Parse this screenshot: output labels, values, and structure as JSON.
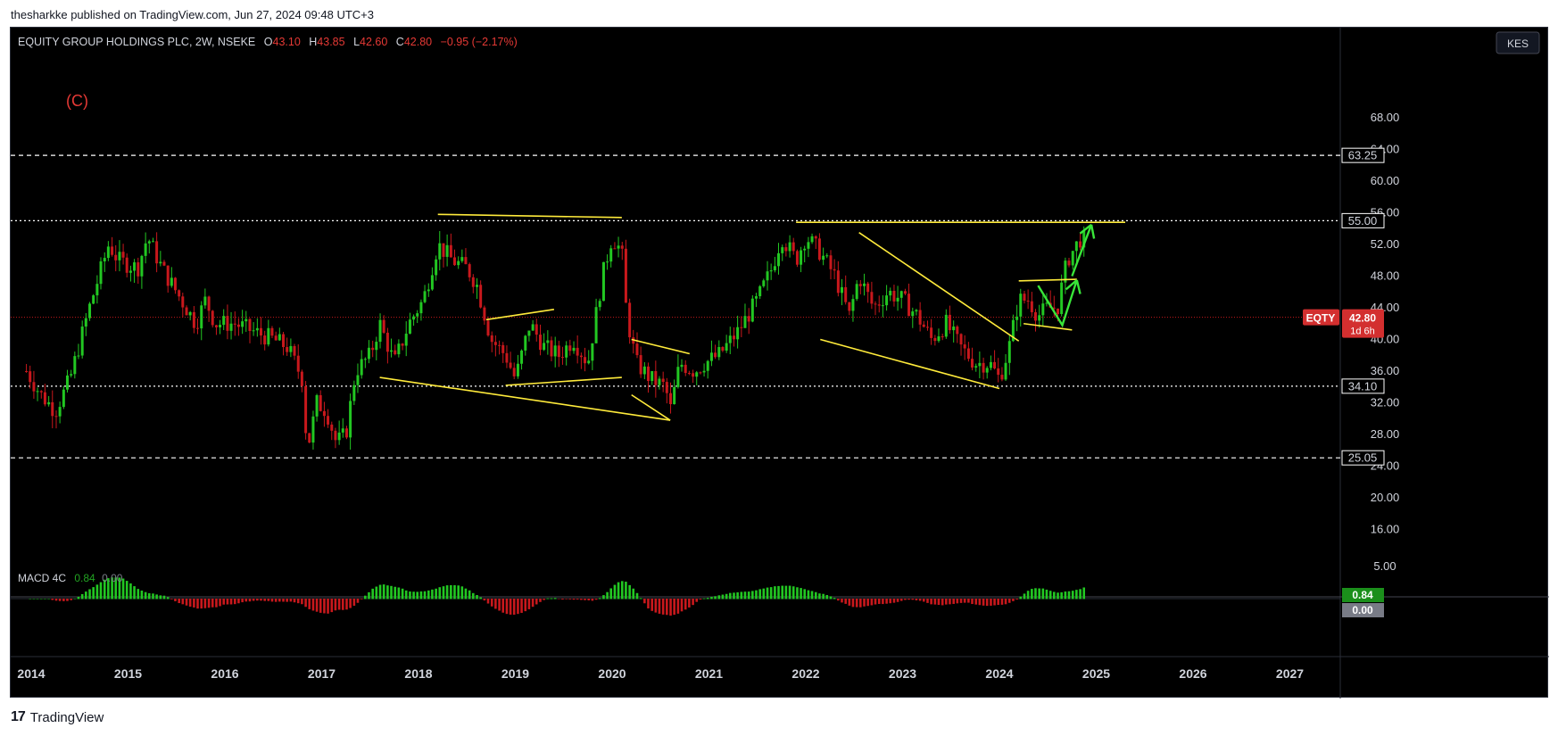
{
  "header": {
    "published_by": "thesharkke published on TradingView.com, Jun 27, 2024 09:48 UTC+3"
  },
  "footer": {
    "brand": "TradingView"
  },
  "colors": {
    "up": "#22c722",
    "down": "#c8181c",
    "line": "#ffeb3b",
    "arrow": "#39e639",
    "label_red": "#e53935",
    "last_price_bg": "#d32f2f"
  },
  "chart_data": {
    "type": "candlestick",
    "symbol_line": {
      "name": "EQUITY GROUP HOLDINGS PLC, 2W, NSEKE",
      "o_label": "O",
      "o": "43.10",
      "h_label": "H",
      "h": "43.85",
      "l_label": "L",
      "l": "42.60",
      "c_label": "C",
      "c": "42.80",
      "change": "−0.95 (−2.17%)"
    },
    "currency": "KES",
    "wave_label": "(C)",
    "ylim": [
      12,
      76
    ],
    "y_ticks": [
      "68.00",
      "64.00",
      "60.00",
      "56.00",
      "52.00",
      "48.00",
      "44.00",
      "40.00",
      "36.00",
      "32.00",
      "28.00",
      "24.00",
      "20.00",
      "16.00"
    ],
    "x_ticks": [
      "2014",
      "2015",
      "2016",
      "2017",
      "2018",
      "2019",
      "2020",
      "2021",
      "2022",
      "2023",
      "2024",
      "2025",
      "2026",
      "2027"
    ],
    "levels": [
      {
        "value": 63.25,
        "label": "63.25",
        "style": "dashed"
      },
      {
        "value": 55.0,
        "label": "55.00",
        "style": "dotted"
      },
      {
        "value": 34.1,
        "label": "34.10",
        "style": "dotted"
      },
      {
        "value": 25.05,
        "label": "25.05",
        "style": "dashed"
      }
    ],
    "last_price": {
      "value": 42.8,
      "symbol": "EQTY",
      "price": "42.80",
      "countdown": "1d 6h"
    },
    "trendlines": [
      {
        "x1": 2018.2,
        "y1": 55.8,
        "x2": 2020.1,
        "y2": 55.4
      },
      {
        "x1": 2017.6,
        "y1": 35.2,
        "x2": 2020.6,
        "y2": 29.8
      },
      {
        "x1": 2018.7,
        "y1": 42.5,
        "x2": 2019.4,
        "y2": 43.8
      },
      {
        "x1": 2018.9,
        "y1": 34.2,
        "x2": 2020.1,
        "y2": 35.2
      },
      {
        "x1": 2020.2,
        "y1": 40.0,
        "x2": 2020.8,
        "y2": 38.2
      },
      {
        "x1": 2020.2,
        "y1": 33.0,
        "x2": 2020.6,
        "y2": 29.8
      },
      {
        "x1": 2021.9,
        "y1": 54.8,
        "x2": 2025.3,
        "y2": 54.8
      },
      {
        "x1": 2022.55,
        "y1": 53.5,
        "x2": 2024.2,
        "y2": 39.8
      },
      {
        "x1": 2022.15,
        "y1": 40.0,
        "x2": 2024.0,
        "y2": 33.8
      },
      {
        "x1": 2024.2,
        "y1": 47.4,
        "x2": 2024.8,
        "y2": 47.6
      },
      {
        "x1": 2024.25,
        "y1": 42.0,
        "x2": 2024.75,
        "y2": 41.2
      }
    ],
    "arrows": [
      {
        "points": [
          [
            2024.4,
            46.8
          ],
          [
            2024.65,
            41.8
          ],
          [
            2024.8,
            47.5
          ]
        ]
      },
      {
        "points": [
          [
            2024.75,
            48.0
          ],
          [
            2024.95,
            54.5
          ]
        ]
      }
    ],
    "candles": [],
    "macd": {
      "label": "MACD 4C",
      "v1": "0.84",
      "v2": "0.00",
      "y_tick": "5.00",
      "last_value": "0.84",
      "zero_value": "0.00"
    }
  }
}
